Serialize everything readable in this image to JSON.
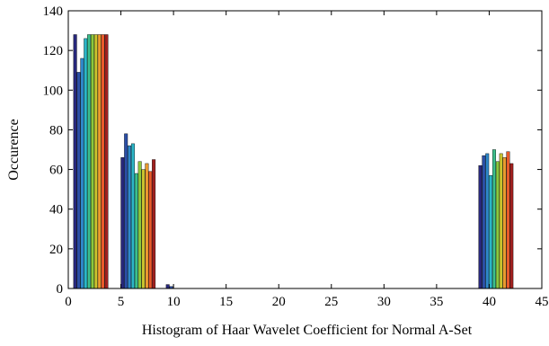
{
  "chart_data": {
    "type": "bar",
    "title": "",
    "xlabel": "Histogram of Haar Wavelet Coefficient for Normal A-Set",
    "ylabel": "Occurence",
    "xlim": [
      0,
      45
    ],
    "ylim": [
      0,
      140
    ],
    "xticks": [
      0,
      5,
      10,
      15,
      20,
      25,
      30,
      35,
      40,
      45
    ],
    "yticks": [
      0,
      20,
      40,
      60,
      80,
      100,
      120,
      140
    ],
    "grid": false,
    "legend": "none",
    "colormap": "jet",
    "bar_width": 0.33,
    "groups": [
      {
        "x_start": 0.5,
        "values": [
          128,
          109,
          116,
          126,
          128,
          128,
          128,
          128,
          128,
          128
        ]
      },
      {
        "x_start": 5.0,
        "values": [
          66,
          78,
          72,
          73,
          58,
          64,
          60,
          63,
          59,
          65
        ]
      },
      {
        "x_start": 9.3,
        "values": [
          2,
          1
        ]
      },
      {
        "x_start": 39.0,
        "values": [
          62,
          67,
          68,
          57,
          70,
          64,
          68,
          66,
          69,
          63
        ]
      }
    ],
    "colors": [
      "#28287c",
      "#2c4fa6",
      "#2f88c9",
      "#2bb6c8",
      "#3cbf8d",
      "#8cc83d",
      "#c9c32e",
      "#e99a2f",
      "#e85a2b",
      "#a0201e"
    ]
  }
}
